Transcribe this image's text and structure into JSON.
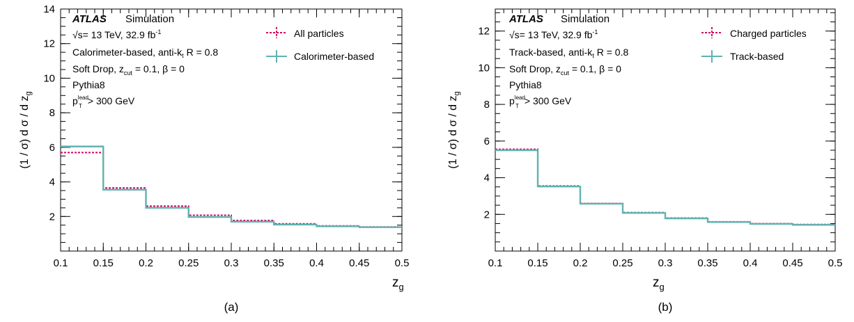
{
  "chart_data": [
    {
      "type": "step",
      "panel_label": "(a)",
      "xlabel": "z",
      "xlabel_sub": "g",
      "ylabel": "(1 / σ) d σ / d z",
      "ylabel_sub": "g",
      "xlim": [
        0.1,
        0.5
      ],
      "ylim": [
        0,
        14
      ],
      "x_ticks": [
        0.1,
        0.15,
        0.2,
        0.25,
        0.3,
        0.35,
        0.4,
        0.45,
        0.5
      ],
      "x_tick_labels": [
        "0.1",
        "0.15",
        "0.2",
        "0.25",
        "0.3",
        "0.35",
        "0.4",
        "0.45",
        "0.5"
      ],
      "y_ticks": [
        2,
        4,
        6,
        8,
        10,
        12,
        14
      ],
      "y_tick_labels": [
        "2",
        "4",
        "6",
        "8",
        "10",
        "12",
        "14"
      ],
      "grid": false,
      "bin_edges": [
        0.1,
        0.15,
        0.2,
        0.25,
        0.3,
        0.35,
        0.4,
        0.45,
        0.5
      ],
      "series": [
        {
          "name": "All particles",
          "style": "dashed",
          "color": "#d6005e",
          "values": [
            5.7,
            3.65,
            2.6,
            2.07,
            1.77,
            1.58,
            1.46,
            1.4
          ]
        },
        {
          "name": "Calorimeter-based",
          "style": "solid",
          "color": "#5fb3b0",
          "values": [
            6.05,
            3.55,
            2.5,
            1.97,
            1.7,
            1.53,
            1.43,
            1.38
          ]
        }
      ],
      "annotations": {
        "atlas": "ATLAS",
        "simulation": "Simulation",
        "energy_prefix": "√s= 13 TeV, 32.9 fb",
        "energy_sup": "-1",
        "algo_prefix": "Calorimeter-based, anti-k",
        "algo_sub": "t",
        "algo_suffix": " R = 0.8",
        "sd_prefix": "Soft Drop, z",
        "sd_sub": "cut",
        "sd_suffix": " = 0.1, β = 0",
        "generator": "Pythia8",
        "pt_base": "p",
        "pt_sub": "T",
        "pt_sup": "lead",
        "pt_suffix": " > 300 GeV"
      },
      "legend_position": "top-right"
    },
    {
      "type": "step",
      "panel_label": "(b)",
      "xlabel": "z",
      "xlabel_sub": "g",
      "ylabel": "(1 / σ) d σ / d z",
      "ylabel_sub": "g",
      "xlim": [
        0.1,
        0.5
      ],
      "ylim": [
        0,
        13.2
      ],
      "x_ticks": [
        0.1,
        0.15,
        0.2,
        0.25,
        0.3,
        0.35,
        0.4,
        0.45,
        0.5
      ],
      "x_tick_labels": [
        "0.1",
        "0.15",
        "0.2",
        "0.25",
        "0.3",
        "0.35",
        "0.4",
        "0.45",
        "0.5"
      ],
      "y_ticks": [
        2,
        4,
        6,
        8,
        10,
        12
      ],
      "y_tick_labels": [
        "2",
        "4",
        "6",
        "8",
        "10",
        "12"
      ],
      "grid": false,
      "bin_edges": [
        0.1,
        0.15,
        0.2,
        0.25,
        0.3,
        0.35,
        0.4,
        0.45,
        0.5
      ],
      "series": [
        {
          "name": "Charged particles",
          "style": "dashed",
          "color": "#d6005e",
          "values": [
            5.55,
            3.55,
            2.6,
            2.1,
            1.8,
            1.6,
            1.5,
            1.45
          ]
        },
        {
          "name": "Track-based",
          "style": "solid",
          "color": "#5fb3b0",
          "values": [
            5.5,
            3.52,
            2.58,
            2.08,
            1.78,
            1.58,
            1.48,
            1.43
          ]
        }
      ],
      "annotations": {
        "atlas": "ATLAS",
        "simulation": "Simulation",
        "energy_prefix": "√s= 13 TeV, 32.9 fb",
        "energy_sup": "-1",
        "algo_prefix": "Track-based, anti-k",
        "algo_sub": "t",
        "algo_suffix": " R = 0.8",
        "sd_prefix": "Soft Drop, z",
        "sd_sub": "cut",
        "sd_suffix": " = 0.1, β = 0",
        "generator": "Pythia8",
        "pt_base": "p",
        "pt_sub": "T",
        "pt_sup": "lead",
        "pt_suffix": " > 300 GeV"
      },
      "legend_position": "top-right"
    }
  ]
}
